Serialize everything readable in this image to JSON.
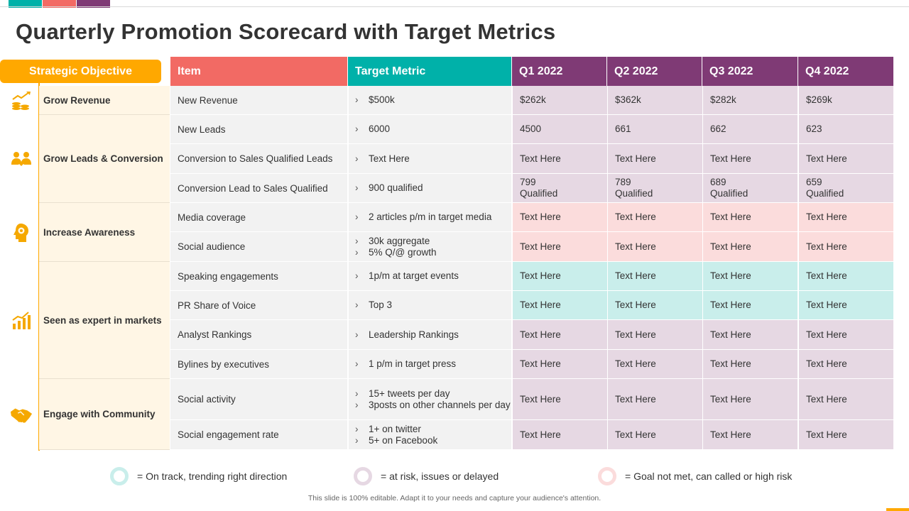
{
  "title": "Quarterly Promotion Scorecard with Target Metrics",
  "colors": {
    "accent_teal": "#00b1a9",
    "accent_red": "#f26a64",
    "accent_purple": "#7f3a75",
    "orange": "#ffa800",
    "q_purple": "#e6d8e3",
    "q_pink": "#fbdcdc",
    "q_teal": "#c9eeeb"
  },
  "headers": {
    "objective": "Strategic Objective",
    "item": "Item",
    "target": "Target Metric",
    "q1": "Q1 2022",
    "q2": "Q2 2022",
    "q3": "Q3 2022",
    "q4": "Q4 2022"
  },
  "objectives": [
    {
      "label": "Grow Revenue",
      "icon": "coins-chart-icon"
    },
    {
      "label": "Grow Leads & Conversion",
      "icon": "people-handshake-icon"
    },
    {
      "label": "Increase Awareness",
      "icon": "head-gear-icon"
    },
    {
      "label": "Seen as expert in markets",
      "icon": "bar-chart-icon"
    },
    {
      "label": "Engage with Community",
      "icon": "handshake-icon"
    }
  ],
  "rows": [
    {
      "item": "New Revenue",
      "target": [
        "$500k"
      ],
      "q": [
        "$262k",
        "$362k",
        "$282k",
        "$269k"
      ],
      "status": "purple"
    },
    {
      "item": "New Leads",
      "target": [
        "6000"
      ],
      "q": [
        "4500",
        "661",
        "662",
        "623"
      ],
      "status": "purple"
    },
    {
      "item": "Conversion  to Sales Qualified Leads",
      "target": [
        "Text Here"
      ],
      "q": [
        "Text Here",
        "Text Here",
        "Text Here",
        "Text Here"
      ],
      "status": "purple"
    },
    {
      "item": "Conversion  Lead to Sales Qualified",
      "target": [
        "900 qualified"
      ],
      "q": [
        "799\nQualified",
        "789\nQualified",
        "689\nQualified",
        "659\nQualified"
      ],
      "status": "purple"
    },
    {
      "item": "Media coverage",
      "target": [
        "2 articles p/m in target media"
      ],
      "q": [
        "Text Here",
        "Text Here",
        "Text Here",
        "Text Here"
      ],
      "status": "pink"
    },
    {
      "item": "Social audience",
      "target": [
        "30k aggregate",
        "5% Q/@ growth"
      ],
      "q": [
        "Text Here",
        "Text Here",
        "Text Here",
        "Text Here"
      ],
      "status": "pink"
    },
    {
      "item": "Speaking engagements",
      "target": [
        "1p/m at target events"
      ],
      "q": [
        "Text Here",
        "Text Here",
        "Text Here",
        "Text Here"
      ],
      "status": "teal"
    },
    {
      "item": "PR Share of Voice",
      "target": [
        "Top 3"
      ],
      "q": [
        "Text Here",
        "Text Here",
        "Text Here",
        "Text Here"
      ],
      "status": "teal"
    },
    {
      "item": "Analyst Rankings",
      "target": [
        "Leadership Rankings"
      ],
      "q": [
        "Text Here",
        "Text Here",
        "Text Here",
        "Text Here"
      ],
      "status": "purple"
    },
    {
      "item": "Bylines by executives",
      "target": [
        "1 p/m in target press"
      ],
      "q": [
        "Text Here",
        "Text Here",
        "Text Here",
        "Text Here"
      ],
      "status": "purple"
    },
    {
      "item": "Social activity",
      "target": [
        "15+ tweets per day",
        "3posts on other channels per day"
      ],
      "q": [
        "Text Here",
        "Text Here",
        "Text Here",
        "Text Here"
      ],
      "status": "purple"
    },
    {
      "item": "Social engagement rate",
      "target": [
        "1+ on twitter",
        "5+ on Facebook"
      ],
      "q": [
        "Text Here",
        "Text Here",
        "Text Here",
        "Text Here"
      ],
      "status": "purple"
    }
  ],
  "legend": [
    {
      "text": "= On track, trending right direction",
      "color": "#c9eeeb"
    },
    {
      "text": "= at risk, issues or delayed",
      "color": "#e6d8e3"
    },
    {
      "text": "= Goal not met, can called or high risk",
      "color": "#fbdcdc"
    }
  ],
  "footer": "This slide is 100% editable. Adapt it to your needs and capture your audience's attention."
}
